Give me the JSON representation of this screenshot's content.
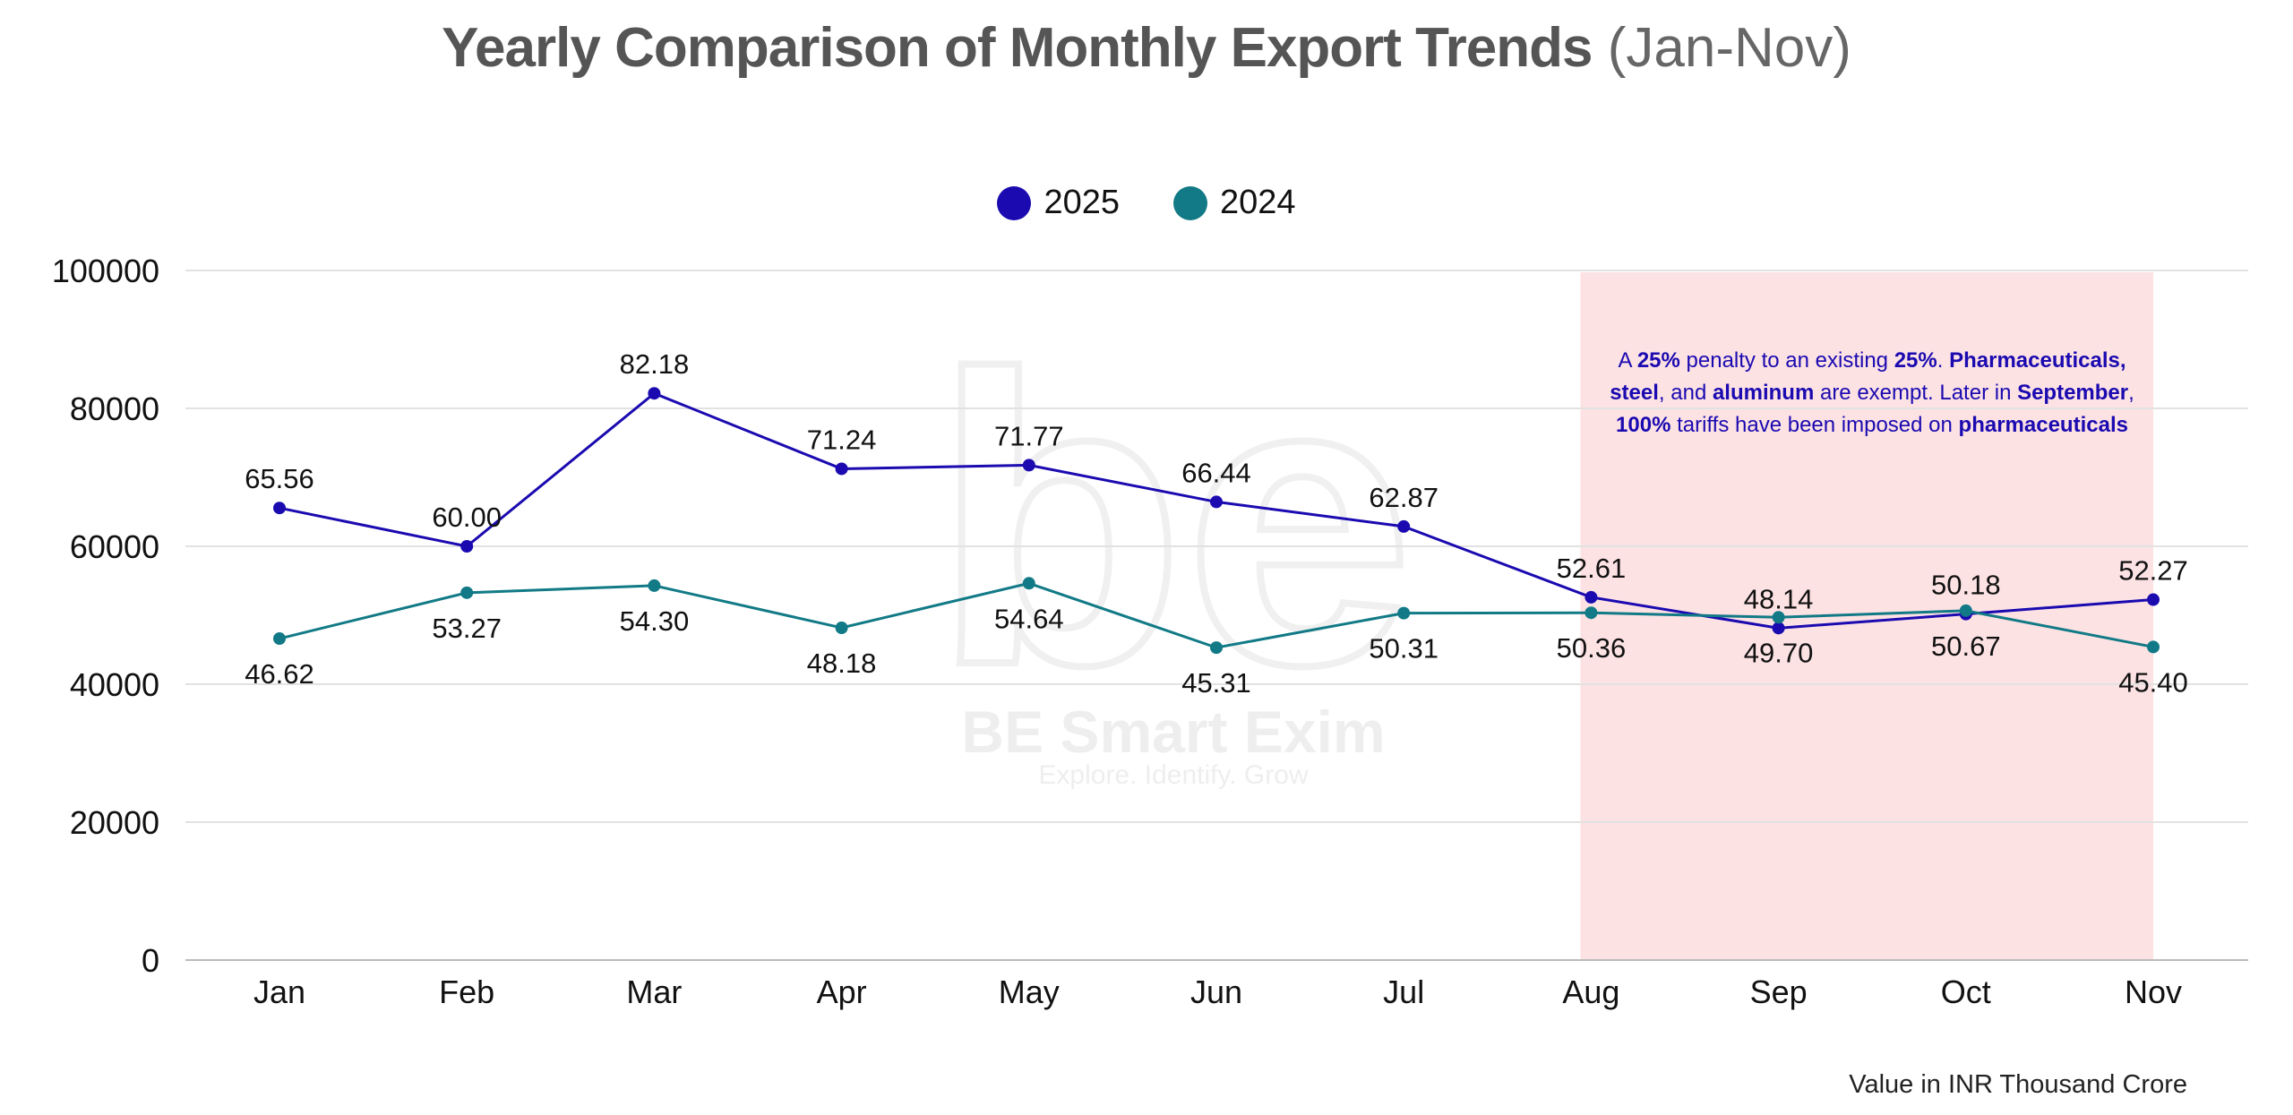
{
  "chart_data": {
    "type": "line",
    "title": "Yearly Comparison of Monthly Export Trends",
    "subtitle": "(Jan-Nov)",
    "categories": [
      "Jan",
      "Feb",
      "Mar",
      "Apr",
      "May",
      "Jun",
      "Jul",
      "Aug",
      "Sep",
      "Oct",
      "Nov"
    ],
    "series": [
      {
        "name": "2025",
        "color": "#1a0ab0",
        "values": [
          65560,
          60000,
          82180,
          71240,
          71770,
          66440,
          62870,
          52610,
          48140,
          50180,
          52270
        ],
        "labels": [
          "65.56",
          "60.00",
          "82.18",
          "71.24",
          "71.77",
          "66.44",
          "62.87",
          "52.61",
          "48.14",
          "50.18",
          "52.27"
        ]
      },
      {
        "name": "2024",
        "color": "#117a86",
        "values": [
          46620,
          53270,
          54300,
          48180,
          54640,
          45310,
          50310,
          50360,
          49700,
          50670,
          45400
        ],
        "labels": [
          "46.62",
          "53.27",
          "54.30",
          "48.18",
          "54.64",
          "45.31",
          "50.31",
          "50.36",
          "49.70",
          "50.67",
          "45.40"
        ]
      }
    ],
    "ylim": [
      0,
      100000
    ],
    "yticks": [
      "0",
      "20000",
      "40000",
      "60000",
      "80000",
      "100000"
    ],
    "grid": true,
    "legend_position": "top-center",
    "highlight": {
      "from": "Aug",
      "to": "Nov",
      "color": "#fde2e4"
    },
    "annotation": [
      {
        "text": "A ",
        "bold": false
      },
      {
        "text": "25%",
        "bold": true
      },
      {
        "text": " penalty to an existing ",
        "bold": false
      },
      {
        "text": "25%",
        "bold": true
      },
      {
        "text": ". ",
        "bold": false
      },
      {
        "text": "Pharmaceuticals, steel",
        "bold": true
      },
      {
        "text": ", and ",
        "bold": false
      },
      {
        "text": "aluminum",
        "bold": true
      },
      {
        "text": " are exempt. Later in ",
        "bold": false
      },
      {
        "text": "September",
        "bold": true
      },
      {
        "text": ", ",
        "bold": false
      },
      {
        "text": "100%",
        "bold": true
      },
      {
        "text": " tariffs have been imposed on ",
        "bold": false
      },
      {
        "text": "pharmaceuticals",
        "bold": true
      }
    ],
    "footnote": "Value in INR Thousand Crore"
  },
  "watermark": {
    "brand": "BE Smart Exim",
    "tagline": "Explore. Identify. Grow"
  }
}
